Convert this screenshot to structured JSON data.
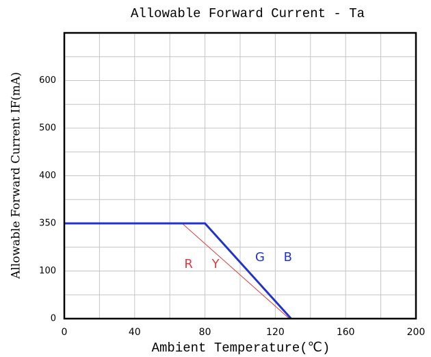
{
  "chart_data": {
    "type": "line",
    "title": "Allowable Forward Current - Ta",
    "x_label": "Ambient Temperature(℃)",
    "y_label": "Allowable Forward Current IF(mA)",
    "xlim": [
      0,
      200
    ],
    "xticks": [
      0,
      40,
      80,
      120,
      160,
      200
    ],
    "ylim": [
      0,
      700
    ],
    "yticks": [
      0,
      100,
      350,
      400,
      500,
      600
    ],
    "grid": true,
    "series": [
      {
        "name": "R Y",
        "color": "#e03a3a",
        "x": [
          0,
          67,
          128
        ],
        "values": [
          350,
          350,
          0
        ]
      },
      {
        "name": "G B",
        "color": "#2233cc",
        "x": [
          0,
          80,
          129
        ],
        "values": [
          350,
          350,
          0
        ]
      }
    ]
  }
}
